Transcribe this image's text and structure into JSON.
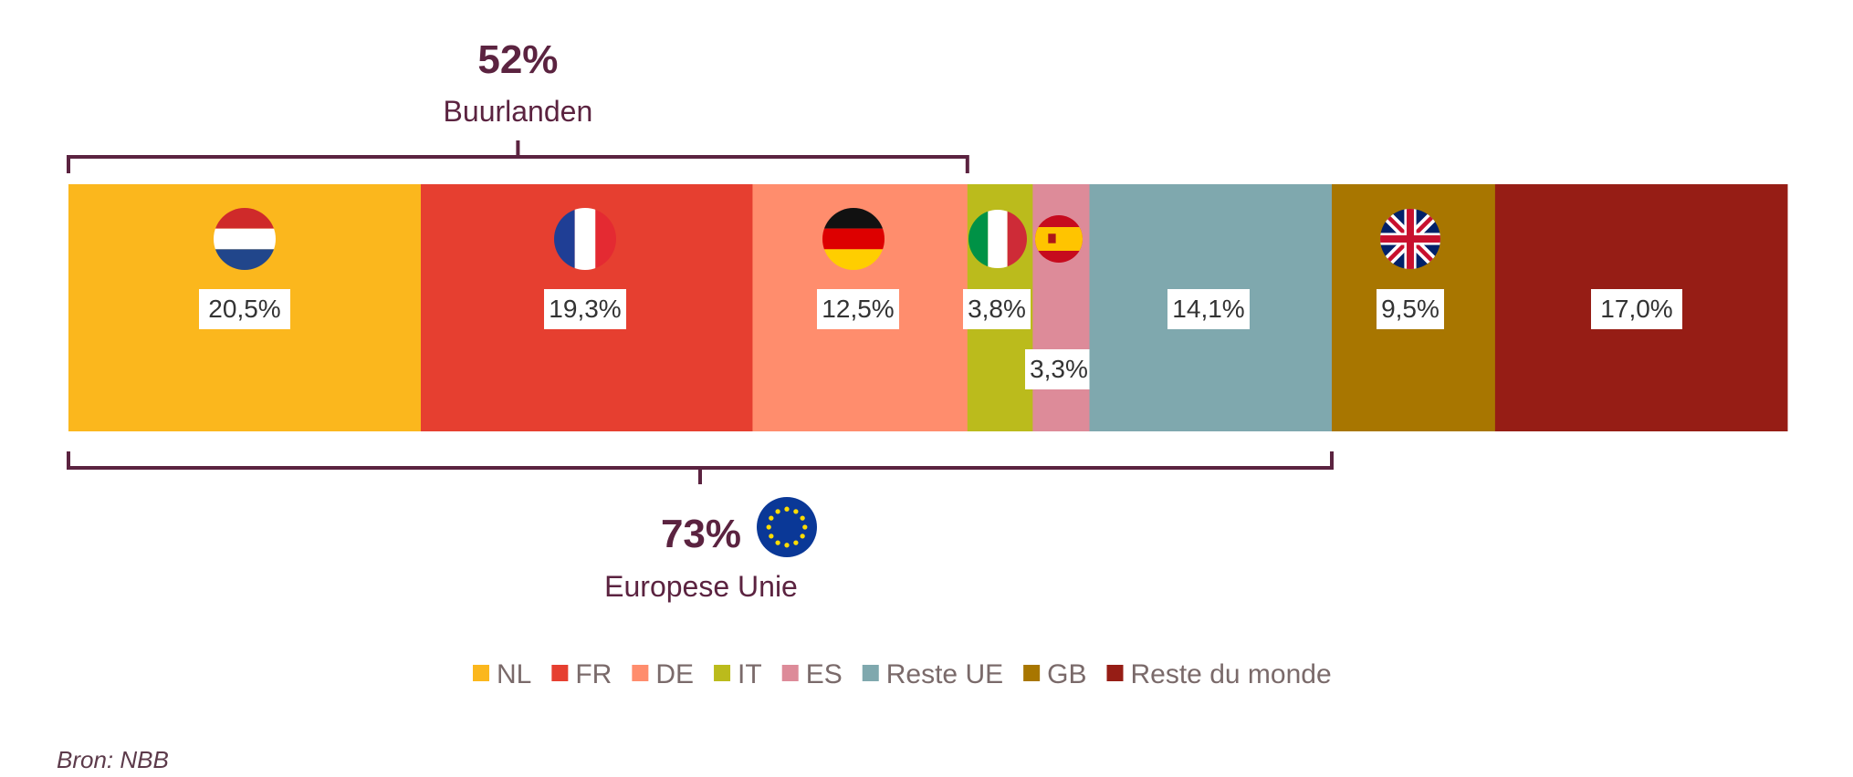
{
  "chart_data": {
    "type": "bar",
    "orientation": "horizontal-stacked",
    "unit": "%",
    "categories": [
      "NL",
      "FR",
      "DE",
      "IT",
      "ES",
      "Reste UE",
      "GB",
      "Reste du monde"
    ],
    "values": [
      20.5,
      19.3,
      12.5,
      3.8,
      3.3,
      14.1,
      9.5,
      17.0
    ],
    "value_labels": [
      "20,5%",
      "19,3%",
      "12,5%",
      "3,8%",
      "3,3%",
      "14,1%",
      "9,5%",
      "17,0%"
    ],
    "colors": [
      "#FBB71D",
      "#E63F30",
      "#FF8D6D",
      "#BBBB1C",
      "#DD8B99",
      "#7FA8AE",
      "#A87600",
      "#961D15"
    ],
    "flags": [
      "netherlands-flag",
      "france-flag",
      "germany-flag",
      "italy-flag",
      "spain-flag",
      null,
      "united-kingdom-flag",
      null
    ],
    "legend": {
      "position": "bottom",
      "entries": [
        "NL",
        "FR",
        "DE",
        "IT",
        "ES",
        "Reste UE",
        "GB",
        "Reste du monde"
      ]
    },
    "annotations": [
      {
        "id": "buurlanden",
        "value": "52%",
        "label": "Buurlanden",
        "spans": [
          "NL",
          "FR",
          "DE"
        ],
        "side": "top"
      },
      {
        "id": "eu",
        "value": "73%",
        "label": "Europese Unie",
        "spans": [
          "NL",
          "FR",
          "DE",
          "IT",
          "ES",
          "Reste UE"
        ],
        "side": "bottom",
        "icon": "eu-flag"
      }
    ]
  },
  "source": "Bron: NBB",
  "colors": {
    "annotation": "#5B2340",
    "legend_text": "#7a6a6a",
    "label_bg": "#ffffff",
    "label_text": "#333333"
  }
}
